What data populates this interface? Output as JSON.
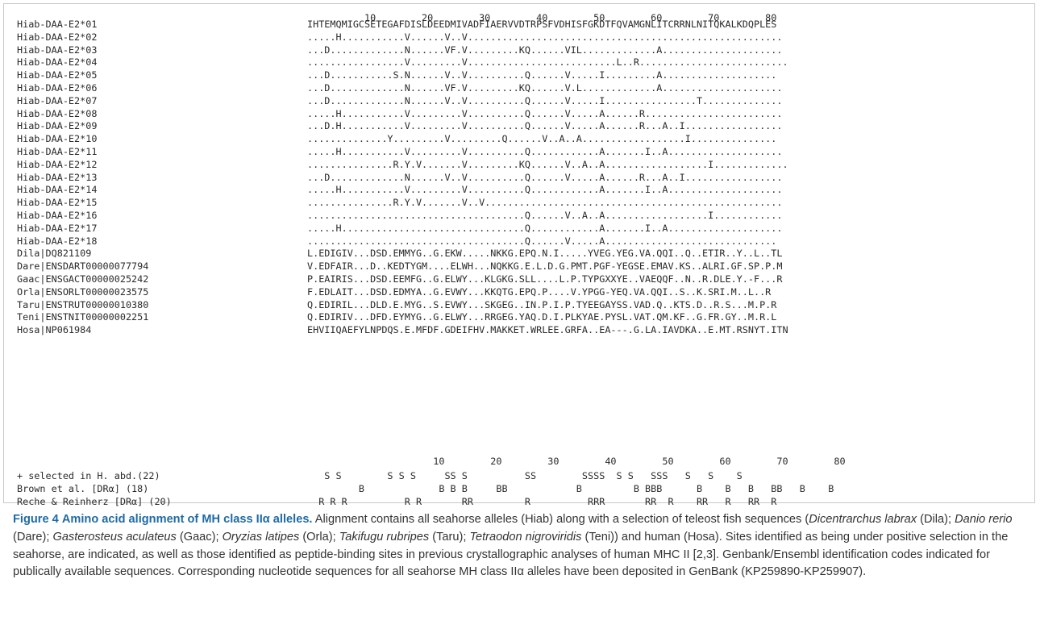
{
  "alignment": {
    "top_ruler": "          10        20        30        40        50        60        70        80",
    "bottom_ruler": "                      10        20        30        40        50        60        70        80",
    "rows": [
      {
        "name": "Hiab-DAA-E2*01",
        "seq": "IHTEMQMIGCSETEGAFDISLDEEDMIVADFIAERVVDTRPSFVDHISFGKDTFQVAMGNLITCRRNLNITQKALKDQPLES"
      },
      {
        "name": "Hiab-DAA-E2*02",
        "seq": ".....H...........V......V..V......................................................."
      },
      {
        "name": "Hiab-DAA-E2*03",
        "seq": "...D.............N......VF.V.........KQ......VIL.............A....................."
      },
      {
        "name": "Hiab-DAA-E2*04",
        "seq": ".................V.........V..........................L..R.........................."
      },
      {
        "name": "Hiab-DAA-E2*05",
        "seq": "...D...........S.N......V..V..........Q......V.....I.........A...................."
      },
      {
        "name": "Hiab-DAA-E2*06",
        "seq": "...D.............N......VF.V.........KQ......V.L.............A....................."
      },
      {
        "name": "Hiab-DAA-E2*07",
        "seq": "...D.............N......V..V..........Q......V.....I................T.............."
      },
      {
        "name": "Hiab-DAA-E2*08",
        "seq": ".....H...........V.........V..........Q......V.....A......R........................"
      },
      {
        "name": "Hiab-DAA-E2*09",
        "seq": "...D.H...........V.........V..........Q......V.....A......R...A..I................."
      },
      {
        "name": "Hiab-DAA-E2*10",
        "seq": "..............Y.........V.........Q......V..A..A..................I..............."
      },
      {
        "name": "Hiab-DAA-E2*11",
        "seq": ".....H...........V.........V..........Q............A.......I..A...................."
      },
      {
        "name": "Hiab-DAA-E2*12",
        "seq": "...............R.Y.V.......V.........KQ......V..A..A..................I............."
      },
      {
        "name": "Hiab-DAA-E2*13",
        "seq": "...D.............N......V..V..........Q......V.....A......R...A..I................."
      },
      {
        "name": "Hiab-DAA-E2*14",
        "seq": ".....H...........V.........V..........Q............A.......I..A...................."
      },
      {
        "name": "Hiab-DAA-E2*15",
        "seq": "...............R.Y.V.......V..V...................................................."
      },
      {
        "name": "Hiab-DAA-E2*16",
        "seq": "......................................Q......V..A..A..................I............"
      },
      {
        "name": "Hiab-DAA-E2*17",
        "seq": ".....H................................Q............A.......I..A...................."
      },
      {
        "name": "Hiab-DAA-E2*18",
        "seq": "......................................Q......V.....A.............................."
      },
      {
        "name": "Dila|DQ821109",
        "seq": "L.EDIGIV...DSD.EMMYG..G.EKW.....NKKG.EPQ.N.I.....YVEG.YEG.VA.QQI..Q..ETIR..Y..L..TL"
      },
      {
        "name": "Dare|ENSDART00000077794",
        "seq": "V.EDFAIR...D..KEDTYGM....ELWH...NQKKG.E.L.D.G.PMT.PGF-YEGSE.EMAV.KS..ALRI.GF.SP.P.M"
      },
      {
        "name": "Gaac|ENSGACT00000025242",
        "seq": "P.EAIRIS...DSD.EEMFG..G.ELWY...KLGKG.SLL....L.P.TYPGXXYE..VAEQQF..N..R.DLE.Y.-F...R"
      },
      {
        "name": "Orla|ENSORLT00000023575",
        "seq": "F.EDLAIT...DSD.EDMYA..G.EVWY...KKQTG.EPQ.P....V.YPGG-YEQ.VA.QQI..S..K.SRI.M..L..R"
      },
      {
        "name": "Taru|ENSTRUT00000010380",
        "seq": "Q.EDIRIL...DLD.E.MYG..S.EVWY...SKGEG..IN.P.I.P.TYEEGAYSS.VAD.Q..KTS.D..R.S...M.P.R"
      },
      {
        "name": "Teni|ENSTNIT00000002251",
        "seq": "Q.EDIRIV...DFD.EYMYG..G.ELWY...RRGEG.YAQ.D.I.PLKYAE.PYSL.VAT.QM.KF..G.FR.GY..M.R.L"
      },
      {
        "name": "Hosa|NP061984",
        "seq": "EHVIIQAEFYLNPDQS.E.MFDF.GDEIFHV.MAKKET.WRLEE.GRFA..EA---.G.LA.IAVDKA..E.MT.RSNYT.ITN"
      }
    ],
    "annotations": [
      {
        "label": "+ selected in H. abd.(22)",
        "marks": "   S S        S S S     SS S          SS        SSSS  S S   SSS   S   S    S"
      },
      {
        "label": "Brown et al. [DRα] (18)",
        "marks": "         B             B B B     BB            B         B BBB      B    B   B   BB   B    B"
      },
      {
        "label": "Reche & Reinherz [DRα] (20)",
        "marks": "  R R R          R R       RR         R          RRR       RR  R    RR   R   RR  R"
      }
    ]
  },
  "caption": {
    "figure_label": "Figure 4",
    "title": "Amino acid alignment of MH class IIα alleles.",
    "part1": " Alignment contains all seahorse alleles (Hiab) along with a selection of teleost fish sequences (",
    "sp1": "Dicentrarchus labrax",
    "ab1": " (Dila); ",
    "sp2": "Danio rerio",
    "ab2": " (Dare); ",
    "sp3": "Gasterosteus aculateus",
    "ab3": " (Gaac); ",
    "sp4": "Oryzias latipes",
    "ab4": " (Orla); ",
    "sp5": "Takifugu rubripes",
    "ab5": " (Taru); ",
    "sp6": "Tetraodon nigroviridis",
    "part2": " (Teni)) and human (Hosa). Sites identified as being under positive selection in the seahorse, are indicated, as well as those identified as peptide-binding sites in previous crystallographic analyses of human MHC II [2,3]. Genbank/Ensembl identification codes indicated for publically available sequences. Corresponding nucleotide sequences for all seahorse MH class IIα alleles have been deposited in GenBank (KP259890-KP259907)."
  }
}
